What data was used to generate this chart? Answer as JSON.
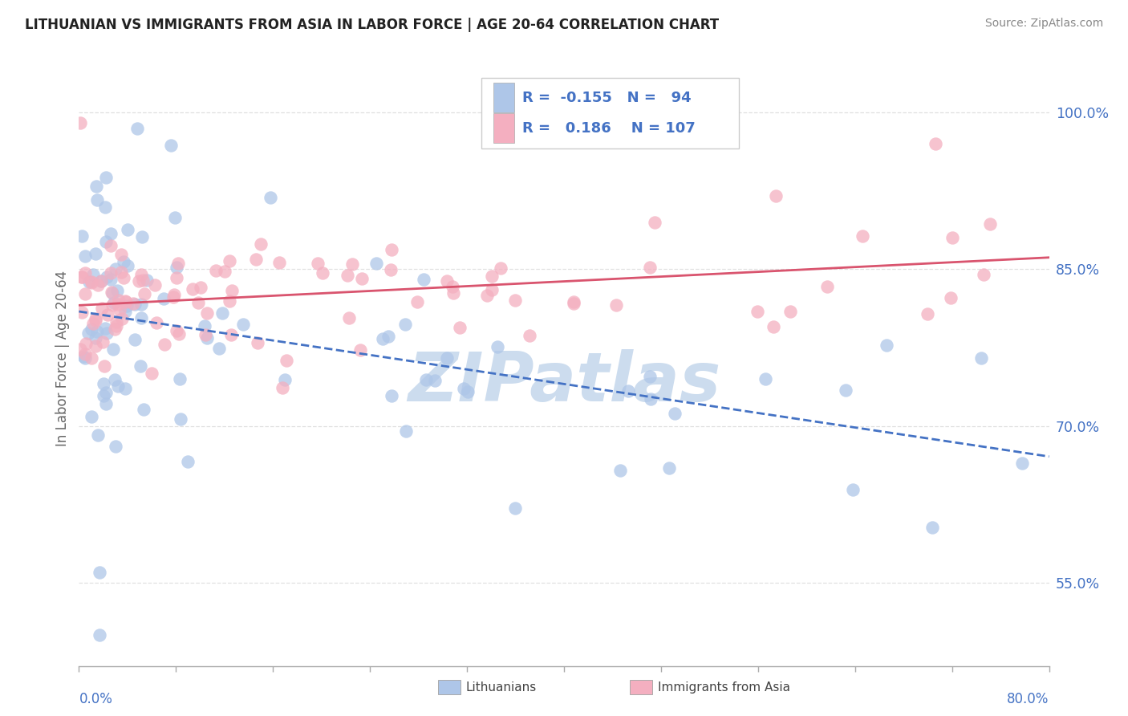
{
  "title": "LITHUANIAN VS IMMIGRANTS FROM ASIA IN LABOR FORCE | AGE 20-64 CORRELATION CHART",
  "source": "Source: ZipAtlas.com",
  "ylabel": "In Labor Force | Age 20-64",
  "yticks": [
    0.55,
    0.7,
    0.85,
    1.0
  ],
  "ytick_labels": [
    "55.0%",
    "70.0%",
    "85.0%",
    "100.0%"
  ],
  "xlim": [
    0.0,
    0.8
  ],
  "ylim": [
    0.47,
    1.06
  ],
  "legend_r_blue": "-0.155",
  "legend_n_blue": "94",
  "legend_r_pink": "0.186",
  "legend_n_pink": "107",
  "blue_color": "#aec6e8",
  "pink_color": "#f4afc0",
  "trend_blue_color": "#4472c4",
  "trend_pink_color": "#d9546e",
  "watermark": "ZIPatlas",
  "watermark_color": "#ccdcee",
  "grid_color": "#e0e0e0",
  "title_color": "#222222",
  "source_color": "#888888",
  "axis_label_color": "#4472c4",
  "ylabel_color": "#666666"
}
